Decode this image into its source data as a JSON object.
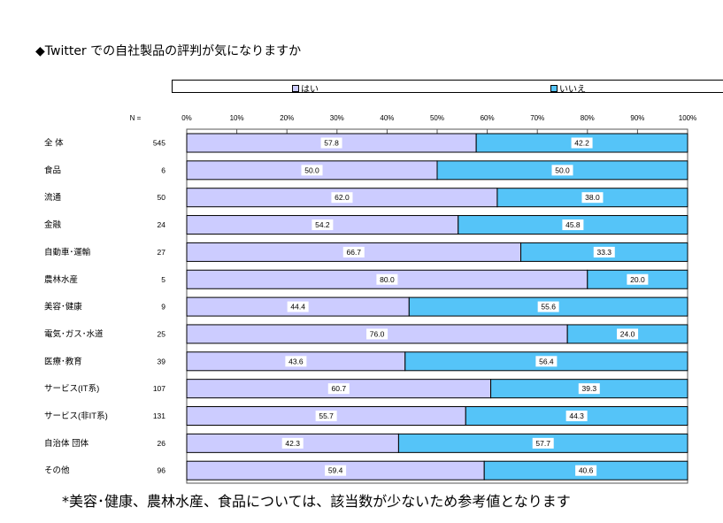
{
  "chart_data": {
    "type": "bar",
    "orientation": "horizontal-stacked-100",
    "title": "◆Twitter での自社製品の評判が気になりますか",
    "n_header": "N =",
    "categories": [
      "全 体",
      "食品",
      "流通",
      "金融",
      "自動車･運輸",
      "農林水産",
      "美容･健康",
      "電気･ガス･水道",
      "医療･教育",
      "サービス(IT系)",
      "サービス(非IT系)",
      "自治体 団体",
      "その他"
    ],
    "n_values": [
      "545",
      "6",
      "50",
      "24",
      "27",
      "5",
      "9",
      "25",
      "39",
      "107",
      "131",
      "26",
      "96"
    ],
    "series": [
      {
        "name": "はい",
        "color": "#ccccff",
        "values": [
          57.8,
          50.0,
          62.0,
          54.2,
          66.7,
          80.0,
          44.4,
          76.0,
          43.6,
          60.7,
          55.7,
          42.3,
          59.4
        ],
        "labels": [
          "57.8",
          "50.0",
          "62.0",
          "54.2",
          "66.7",
          "80.0",
          "44.4",
          "76.0",
          "43.6",
          "60.7",
          "55.7",
          "42.3",
          "59.4"
        ]
      },
      {
        "name": "いいえ",
        "color": "#55c4f8",
        "values": [
          42.2,
          50.0,
          38.0,
          45.8,
          33.3,
          20.0,
          55.6,
          24.0,
          56.4,
          39.3,
          44.3,
          57.7,
          40.6
        ],
        "labels": [
          "42.2",
          "50.0",
          "38.0",
          "45.8",
          "33.3",
          "20.0",
          "55.6",
          "24.0",
          "56.4",
          "39.3",
          "44.3",
          "57.7",
          "40.6"
        ]
      }
    ],
    "x_ticks": [
      "0%",
      "10%",
      "20%",
      "30%",
      "40%",
      "50%",
      "60%",
      "70%",
      "80%",
      "90%",
      "100%"
    ],
    "xlim": [
      0,
      100
    ],
    "legend": "top",
    "footnote": "*美容･健康、農林水産、食品については、該当数が少ないため参考値となります"
  }
}
